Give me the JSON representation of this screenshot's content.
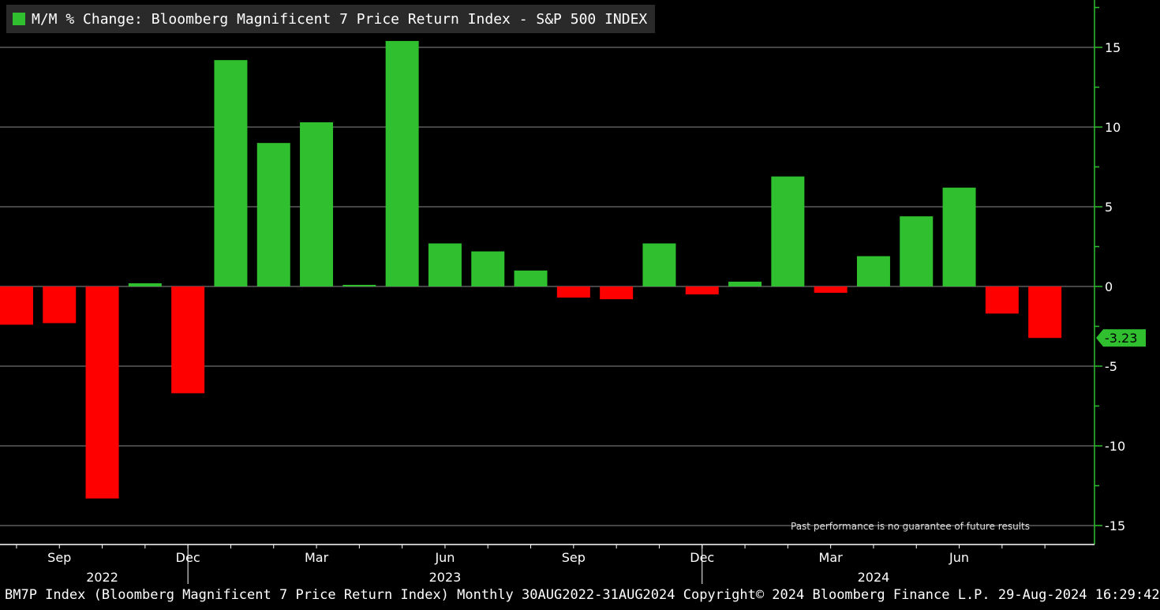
{
  "legend": {
    "label": "M/M % Change: Bloomberg Magnificent 7 Price Return Index - S&P 500 INDEX",
    "color": "#2fbf2f"
  },
  "disclaimer": "Past performance is no guarantee of future results",
  "footer": "BM7P Index (Bloomberg Magnificent 7 Price Return Index)  Monthly 30AUG2022-31AUG2024 Copyright© 2024 Bloomberg Finance L.P. 29-Aug-2024 16:29:42",
  "chart_data": {
    "type": "bar",
    "categories": [
      "Aug 2022",
      "Sep 2022",
      "Oct 2022",
      "Nov 2022",
      "Dec 2022",
      "Jan 2023",
      "Feb 2023",
      "Mar 2023",
      "Apr 2023",
      "May 2023",
      "Jun 2023",
      "Jul 2023",
      "Aug 2023",
      "Sep 2023",
      "Oct 2023",
      "Nov 2023",
      "Dec 2023",
      "Jan 2024",
      "Feb 2024",
      "Mar 2024",
      "Apr 2024",
      "May 2024",
      "Jun 2024",
      "Jul 2024",
      "Aug 2024"
    ],
    "values": [
      -2.4,
      -2.3,
      -13.3,
      0.2,
      -6.7,
      14.2,
      9.0,
      10.3,
      0.1,
      15.4,
      2.7,
      2.2,
      1.0,
      -0.7,
      -0.8,
      2.7,
      -0.5,
      0.3,
      6.9,
      -0.4,
      1.9,
      4.4,
      6.2,
      -1.7,
      -3.23
    ],
    "positive_color": "#2fbf2f",
    "negative_color": "#ff0000",
    "ylim": [
      -16,
      18
    ],
    "yticks": [
      15,
      10,
      5,
      0,
      -5,
      -10,
      -15
    ],
    "ytick_labels": [
      "15",
      "10",
      "5",
      "0",
      "-5",
      "-10",
      "-15"
    ],
    "x_month_labels": [
      {
        "index": 1,
        "label": "Sep"
      },
      {
        "index": 4,
        "label": "Dec"
      },
      {
        "index": 7,
        "label": "Mar"
      },
      {
        "index": 10,
        "label": "Jun"
      },
      {
        "index": 13,
        "label": "Sep"
      },
      {
        "index": 16,
        "label": "Dec"
      },
      {
        "index": 19,
        "label": "Mar"
      },
      {
        "index": 22,
        "label": "Jun"
      }
    ],
    "x_year_labels": [
      {
        "index": 2,
        "label": "2022"
      },
      {
        "index": 10,
        "label": "2023"
      },
      {
        "index": 20,
        "label": "2024"
      }
    ],
    "year_dividers": [
      4.5,
      16.5
    ],
    "last_value_label": "-3.23",
    "grid": true
  }
}
